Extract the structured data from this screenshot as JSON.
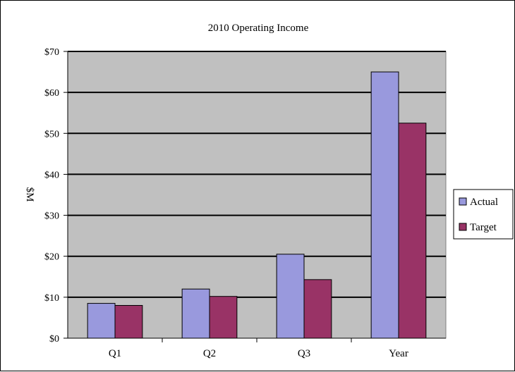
{
  "chart_data": {
    "type": "bar",
    "title": "2010 Operating Income",
    "ylabel": "$M",
    "xlabel": "",
    "categories": [
      "Q1",
      "Q2",
      "Q3",
      "Year"
    ],
    "series": [
      {
        "name": "Actual",
        "values": [
          8.5,
          12,
          20.5,
          65
        ],
        "color": "#9999dd"
      },
      {
        "name": "Target",
        "values": [
          8,
          10.2,
          14.3,
          52.5
        ],
        "color": "#993366"
      }
    ],
    "ylim": [
      0,
      70
    ],
    "yticks": [
      0,
      10,
      20,
      30,
      40,
      50,
      60,
      70
    ],
    "ytick_labels": [
      "$0",
      "$10",
      "$20",
      "$30",
      "$40",
      "$50",
      "$60",
      "$70"
    ],
    "grid": true,
    "legend_position": "right",
    "plot_background": "#c0c0c0"
  }
}
